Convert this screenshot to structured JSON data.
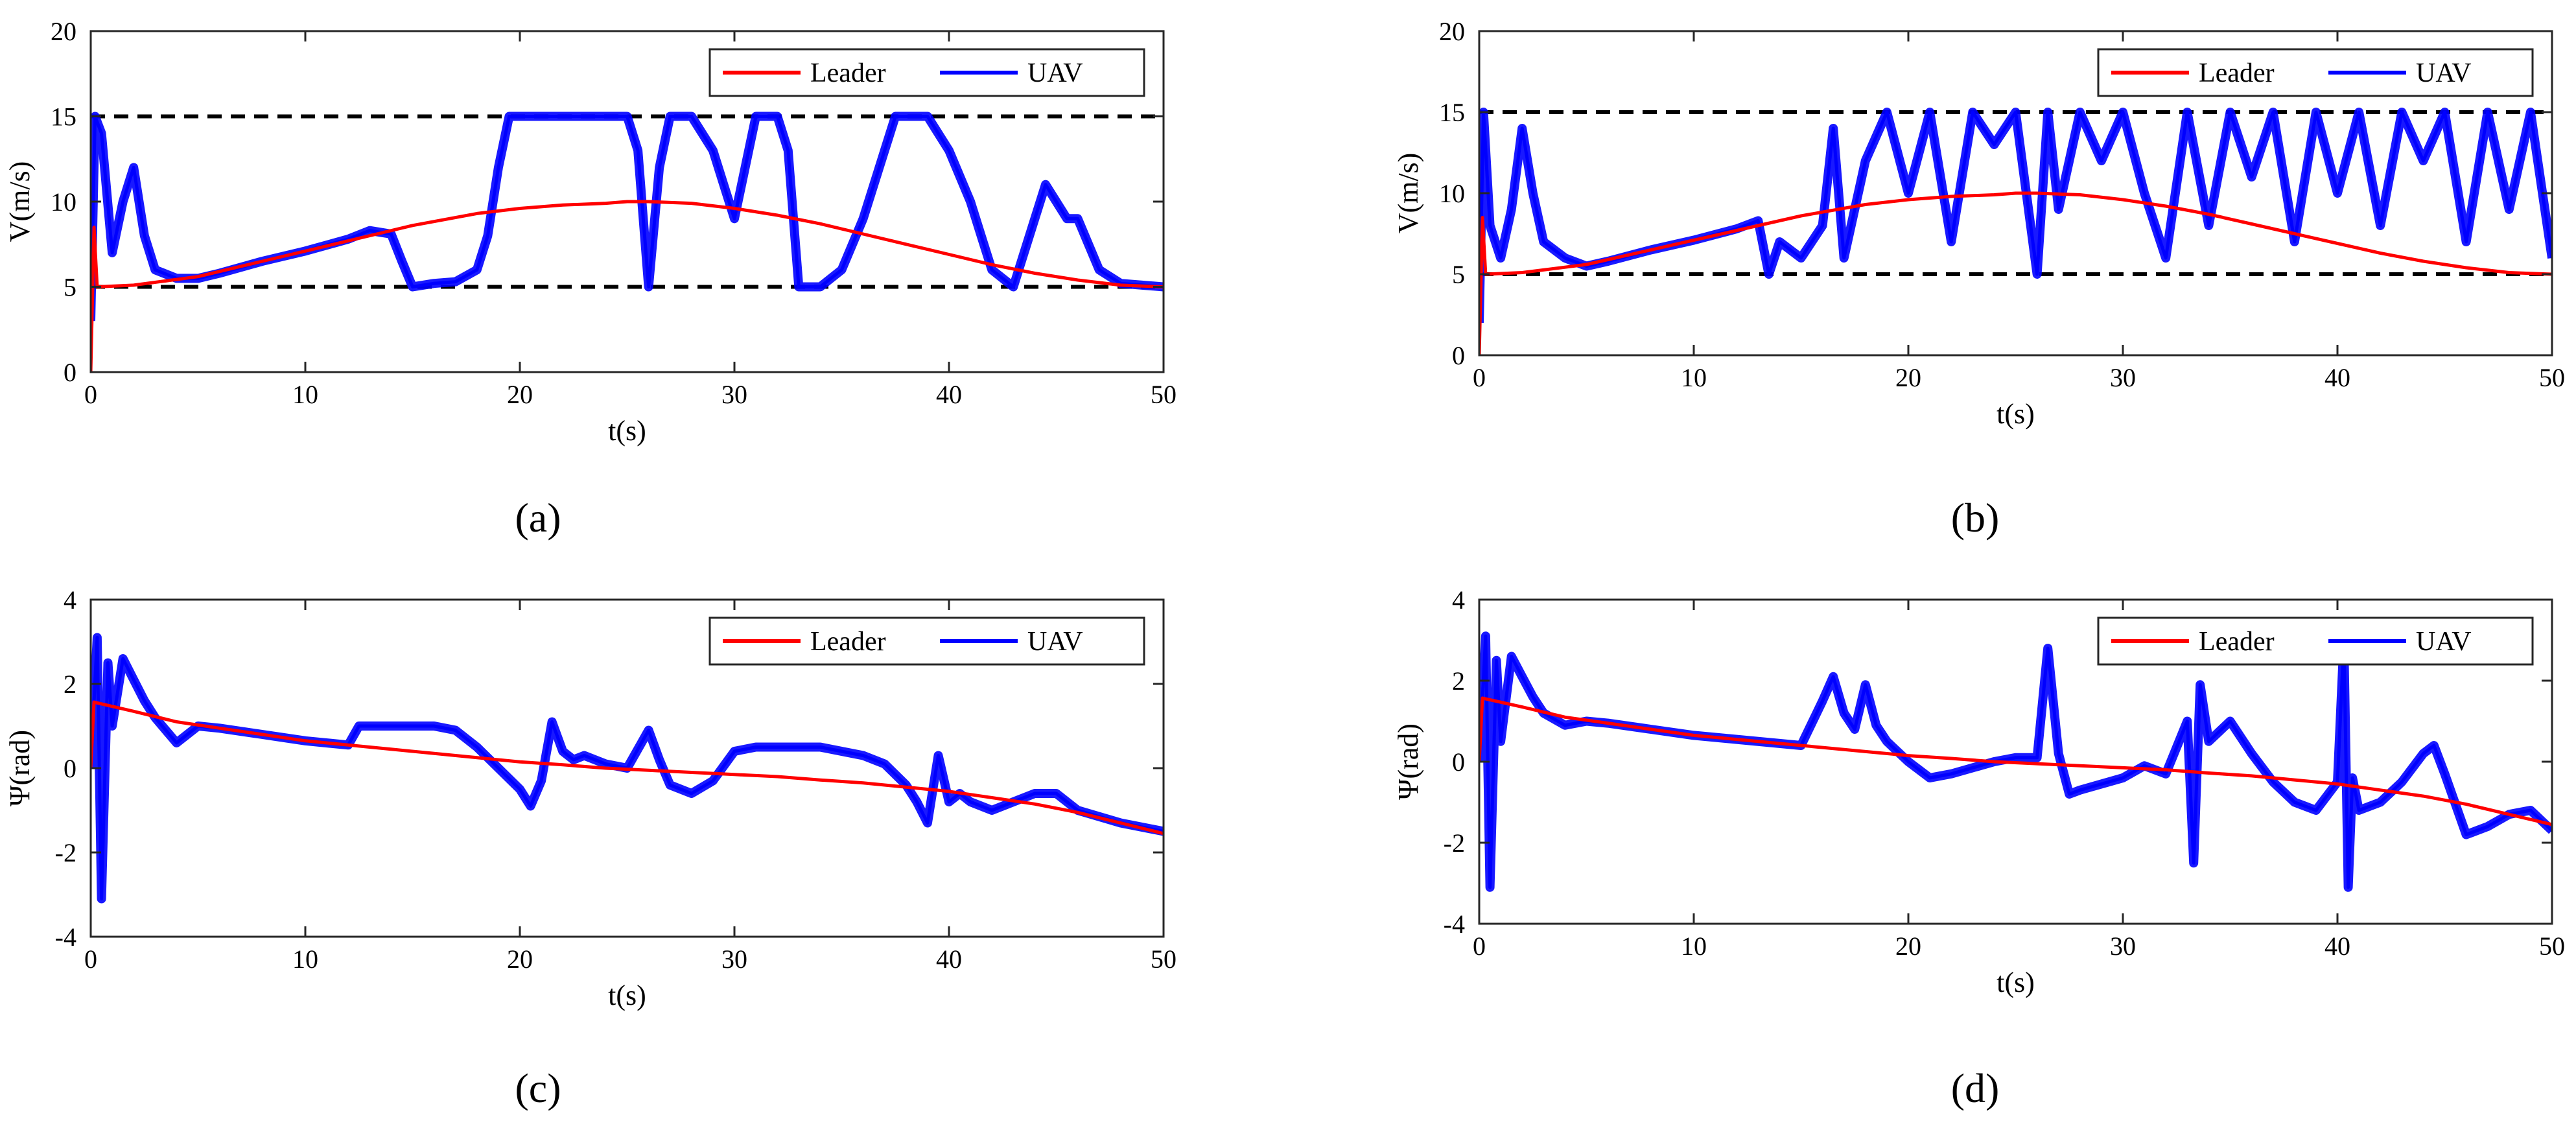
{
  "colors": {
    "leader": "#ff0000",
    "uav": "#0000ff",
    "bound": "#000000",
    "axes": "#262626"
  },
  "chart_data": [
    {
      "id": "a",
      "type": "line",
      "caption": "(a)",
      "xlabel": "t(s)",
      "ylabel": "V(m/s)",
      "xlim": [
        0,
        50
      ],
      "ylim": [
        0,
        20
      ],
      "xticks": [
        0,
        10,
        20,
        30,
        40,
        50
      ],
      "yticks": [
        0,
        5,
        10,
        15,
        20
      ],
      "grid": false,
      "legend_position": "top-right",
      "legend": [
        "Leader",
        "UAV"
      ],
      "bounds": [
        5,
        15
      ],
      "series": [
        {
          "name": "Leader",
          "x": [
            0,
            0.15,
            0.3,
            2,
            5,
            8,
            10,
            12,
            15,
            18,
            20,
            22,
            24,
            25,
            26,
            28,
            30,
            32,
            34,
            36,
            38,
            40,
            42,
            44,
            46,
            48,
            50
          ],
          "y": [
            0,
            8.5,
            5,
            5.1,
            5.6,
            6.5,
            7.1,
            7.7,
            8.6,
            9.3,
            9.6,
            9.8,
            9.9,
            10,
            10,
            9.9,
            9.6,
            9.2,
            8.7,
            8.1,
            7.5,
            6.9,
            6.3,
            5.8,
            5.4,
            5.1,
            5
          ]
        },
        {
          "name": "UAV",
          "x": [
            0,
            0.2,
            0.5,
            1,
            1.5,
            2,
            2.5,
            3,
            4,
            5,
            6,
            8,
            10,
            12,
            13,
            14,
            14.5,
            15,
            16,
            17,
            18,
            18.5,
            19,
            19.5,
            20,
            21,
            21.5,
            22,
            23,
            24,
            25,
            25.5,
            26,
            26.5,
            27,
            28,
            29,
            29.5,
            30,
            31,
            32,
            32.5,
            33,
            34,
            35,
            36,
            37,
            37.5,
            38,
            39,
            40,
            41,
            41.5,
            42,
            43,
            44,
            44.5,
            45,
            45.5,
            46,
            47,
            48,
            49,
            50
          ],
          "y": [
            3,
            15,
            14,
            7,
            10,
            12,
            8,
            6,
            5.5,
            5.5,
            5.8,
            6.5,
            7.1,
            7.8,
            8.3,
            8.1,
            6.5,
            5,
            5.2,
            5.3,
            6,
            8,
            12,
            15,
            15,
            15,
            15,
            15,
            15,
            15,
            15,
            13,
            5,
            12,
            15,
            15,
            13,
            11,
            9,
            15,
            15,
            13,
            5,
            5,
            6,
            9,
            13,
            15,
            15,
            15,
            13,
            10,
            8,
            6,
            5,
            9,
            11,
            10,
            9,
            9,
            6,
            5.2,
            5.1,
            5
          ]
        }
      ]
    },
    {
      "id": "b",
      "type": "line",
      "caption": "(b)",
      "xlabel": "t(s)",
      "ylabel": "V(m/s)",
      "xlim": [
        0,
        50
      ],
      "ylim": [
        0,
        20
      ],
      "xticks": [
        0,
        10,
        20,
        30,
        40,
        50
      ],
      "yticks": [
        0,
        5,
        10,
        15,
        20
      ],
      "grid": false,
      "legend_position": "top-right",
      "legend": [
        "Leader",
        "UAV"
      ],
      "bounds": [
        5,
        15
      ],
      "series": [
        {
          "name": "Leader",
          "x": [
            0,
            0.15,
            0.3,
            2,
            5,
            8,
            10,
            12,
            15,
            18,
            20,
            22,
            24,
            25,
            26,
            28,
            30,
            32,
            34,
            36,
            38,
            40,
            42,
            44,
            46,
            48,
            50
          ],
          "y": [
            0,
            8.5,
            5,
            5.1,
            5.6,
            6.5,
            7.1,
            7.7,
            8.6,
            9.3,
            9.6,
            9.8,
            9.9,
            10,
            10,
            9.9,
            9.6,
            9.2,
            8.7,
            8.1,
            7.5,
            6.9,
            6.3,
            5.8,
            5.4,
            5.1,
            5
          ]
        },
        {
          "name": "UAV",
          "x": [
            0,
            0.2,
            0.5,
            1,
            1.5,
            2,
            2.5,
            3,
            4,
            5,
            6,
            8,
            10,
            12,
            13,
            13.5,
            14,
            15,
            16,
            16.5,
            17,
            18,
            19,
            20,
            21,
            22,
            23,
            24,
            25,
            26,
            26.5,
            27,
            28,
            29,
            30,
            31,
            32,
            33,
            34,
            35,
            36,
            37,
            38,
            39,
            40,
            41,
            42,
            43,
            44,
            45,
            46,
            47,
            48,
            49,
            50
          ],
          "y": [
            2,
            15,
            8,
            6,
            9,
            14,
            10,
            7,
            6,
            5.5,
            5.8,
            6.5,
            7.1,
            7.8,
            8.3,
            5,
            7,
            6,
            8,
            14,
            6,
            12,
            15,
            10,
            15,
            7,
            15,
            13,
            15,
            5,
            15,
            9,
            15,
            12,
            15,
            10,
            6,
            15,
            8,
            15,
            11,
            15,
            7,
            15,
            10,
            15,
            8,
            15,
            12,
            15,
            7,
            15,
            9,
            15,
            6
          ]
        }
      ]
    },
    {
      "id": "c",
      "type": "line",
      "caption": "(c)",
      "xlabel": "t(s)",
      "ylabel": "Ψ(rad)",
      "xlim": [
        0,
        50
      ],
      "ylim": [
        -4,
        4
      ],
      "xticks": [
        0,
        10,
        20,
        30,
        40,
        50
      ],
      "yticks": [
        -4,
        -2,
        0,
        2,
        4
      ],
      "grid": false,
      "legend_position": "top-right",
      "legend": [
        "Leader",
        "UAV"
      ],
      "series": [
        {
          "name": "Leader",
          "x": [
            0,
            0.15,
            0.3,
            2,
            4,
            6,
            8,
            10,
            12,
            14,
            16,
            18,
            20,
            22,
            24,
            26,
            28,
            30,
            32,
            34,
            36,
            38,
            40,
            42,
            44,
            46,
            48,
            50
          ],
          "y": [
            0,
            1.57,
            1.55,
            1.35,
            1.1,
            0.95,
            0.8,
            0.65,
            0.55,
            0.45,
            0.35,
            0.25,
            0.15,
            0.08,
            0,
            -0.05,
            -0.1,
            -0.15,
            -0.2,
            -0.28,
            -0.35,
            -0.45,
            -0.55,
            -0.7,
            -0.85,
            -1.05,
            -1.3,
            -1.55
          ]
        },
        {
          "name": "UAV",
          "x": [
            0,
            0.3,
            0.5,
            0.8,
            1,
            1.5,
            2,
            2.5,
            3,
            4,
            5,
            6,
            8,
            10,
            12,
            12.5,
            13,
            14,
            16,
            17,
            18,
            19,
            20,
            20.5,
            21,
            21.5,
            22,
            22.5,
            23,
            24,
            25,
            26,
            26.5,
            27,
            28,
            29,
            30,
            31,
            32,
            33,
            34,
            35,
            36,
            37,
            38,
            38.5,
            39,
            39.5,
            40,
            40.5,
            41,
            42,
            43,
            44,
            45,
            46,
            48,
            50
          ],
          "y": [
            0,
            3.1,
            -3.1,
            2.5,
            1,
            2.6,
            2.1,
            1.6,
            1.2,
            0.6,
            1.0,
            0.95,
            0.8,
            0.65,
            0.55,
            1.0,
            1.0,
            1.0,
            1.0,
            0.9,
            0.5,
            0,
            -0.5,
            -0.9,
            -0.3,
            1.1,
            0.4,
            0.2,
            0.3,
            0.1,
            0,
            0.9,
            0.2,
            -0.4,
            -0.6,
            -0.3,
            0.4,
            0.5,
            0.5,
            0.5,
            0.5,
            0.4,
            0.3,
            0.1,
            -0.4,
            -0.8,
            -1.3,
            0.3,
            -0.8,
            -0.6,
            -0.8,
            -1.0,
            -0.8,
            -0.6,
            -0.6,
            -1.0,
            -1.3,
            -1.5
          ]
        }
      ]
    },
    {
      "id": "d",
      "type": "line",
      "caption": "(d)",
      "xlabel": "t(s)",
      "ylabel": "Ψ(rad)",
      "xlim": [
        0,
        50
      ],
      "ylim": [
        -4,
        4
      ],
      "xticks": [
        0,
        10,
        20,
        30,
        40,
        50
      ],
      "yticks": [
        -4,
        -2,
        0,
        2,
        4
      ],
      "grid": false,
      "legend_position": "top-right",
      "legend": [
        "Leader",
        "UAV"
      ],
      "series": [
        {
          "name": "Leader",
          "x": [
            0,
            0.15,
            0.3,
            2,
            4,
            6,
            8,
            10,
            12,
            14,
            16,
            18,
            20,
            22,
            24,
            26,
            28,
            30,
            32,
            34,
            36,
            38,
            40,
            42,
            44,
            46,
            48,
            50
          ],
          "y": [
            0,
            1.57,
            1.55,
            1.35,
            1.1,
            0.95,
            0.8,
            0.65,
            0.55,
            0.45,
            0.35,
            0.25,
            0.15,
            0.08,
            0,
            -0.05,
            -0.1,
            -0.15,
            -0.2,
            -0.28,
            -0.35,
            -0.45,
            -0.55,
            -0.7,
            -0.85,
            -1.05,
            -1.3,
            -1.55
          ]
        },
        {
          "name": "UAV",
          "x": [
            0,
            0.3,
            0.5,
            0.8,
            1,
            1.5,
            2,
            2.5,
            3,
            4,
            5,
            6,
            8,
            10,
            12,
            14,
            15,
            16,
            16.5,
            17,
            17.5,
            18,
            18.5,
            19,
            20,
            21,
            22,
            24,
            25,
            26,
            26.5,
            27,
            27.5,
            28,
            30,
            31,
            32,
            33,
            33.3,
            33.6,
            34,
            35,
            36,
            37,
            38,
            39,
            40,
            40.3,
            40.5,
            40.7,
            41,
            42,
            43,
            44,
            44.5,
            45,
            46,
            47,
            48,
            49,
            50
          ],
          "y": [
            0,
            3.1,
            -3.1,
            2.5,
            0.5,
            2.6,
            2.1,
            1.6,
            1.2,
            0.9,
            1.0,
            0.95,
            0.8,
            0.65,
            0.55,
            0.45,
            0.4,
            1.5,
            2.1,
            1.2,
            0.8,
            1.9,
            0.9,
            0.5,
            0,
            -0.4,
            -0.3,
            0,
            0.1,
            0.1,
            2.8,
            0.2,
            -0.8,
            -0.7,
            -0.4,
            -0.1,
            -0.3,
            1.0,
            -2.5,
            1.9,
            0.5,
            1.0,
            0.2,
            -0.5,
            -1.0,
            -1.2,
            -0.5,
            3.0,
            -3.1,
            -0.4,
            -1.2,
            -1.0,
            -0.5,
            0.2,
            0.4,
            -0.3,
            -1.8,
            -1.6,
            -1.3,
            -1.2,
            -1.7
          ]
        }
      ]
    }
  ]
}
